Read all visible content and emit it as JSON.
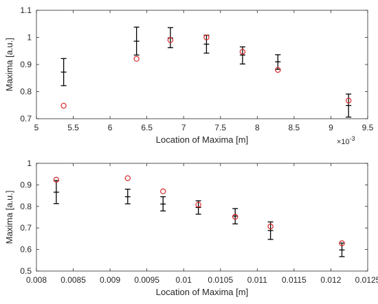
{
  "chart_data": [
    {
      "type": "scatter",
      "xlabel": "Location of Maxima [m]",
      "ylabel": "Maxima [a.u.]",
      "x_exponent_label": "×10",
      "x_exponent_power": "-3",
      "xlim": [
        5,
        9.5
      ],
      "ylim": [
        0.7,
        1.1
      ],
      "xticks": [
        5,
        5.5,
        6,
        6.5,
        7,
        7.5,
        8,
        8.5,
        9,
        9.5
      ],
      "xtick_labels": [
        "5",
        "5.5",
        "6",
        "6.5",
        "7",
        "7.5",
        "8",
        "8.5",
        "9",
        "9.5"
      ],
      "yticks": [
        0.7,
        0.8,
        0.9,
        1.0,
        1.1
      ],
      "ytick_labels": [
        "0.7",
        "0.8",
        "0.9",
        "1",
        "1.1"
      ],
      "grid": false,
      "colors": {
        "errorbar": "#000000",
        "marker": "#d62728"
      },
      "series": [
        {
          "style": "errorbar",
          "points": [
            {
              "x": 5.37,
              "y": 0.872,
              "low": 0.822,
              "high": 0.922
            },
            {
              "x": 6.36,
              "y": 0.986,
              "low": 0.935,
              "high": 1.038
            },
            {
              "x": 6.82,
              "y": 0.998,
              "low": 0.962,
              "high": 1.036
            },
            {
              "x": 7.31,
              "y": 0.975,
              "low": 0.942,
              "high": 1.008
            },
            {
              "x": 7.8,
              "y": 0.935,
              "low": 0.902,
              "high": 0.965
            },
            {
              "x": 8.28,
              "y": 0.91,
              "low": 0.882,
              "high": 0.936
            },
            {
              "x": 9.24,
              "y": 0.749,
              "low": 0.706,
              "high": 0.791
            }
          ]
        },
        {
          "style": "circle",
          "points": [
            {
              "x": 5.37,
              "y": 0.748
            },
            {
              "x": 6.36,
              "y": 0.921
            },
            {
              "x": 6.82,
              "y": 0.99
            },
            {
              "x": 7.31,
              "y": 1.0
            },
            {
              "x": 7.8,
              "y": 0.947
            },
            {
              "x": 8.28,
              "y": 0.88
            },
            {
              "x": 9.24,
              "y": 0.767
            }
          ]
        }
      ]
    },
    {
      "type": "scatter",
      "xlabel": "Location of Maxima [m]",
      "ylabel": "Maxima [a.u.]",
      "xlim": [
        0.008,
        0.0125
      ],
      "ylim": [
        0.5,
        1.0
      ],
      "xticks": [
        0.008,
        0.0085,
        0.009,
        0.0095,
        0.01,
        0.0105,
        0.011,
        0.0115,
        0.012,
        0.0125
      ],
      "xtick_labels": [
        "0.008",
        "0.0085",
        "0.009",
        "0.0095",
        "0.01",
        "0.0105",
        "0.011",
        "0.0115",
        "0.012",
        "0.0125"
      ],
      "yticks": [
        0.5,
        0.6,
        0.7,
        0.8,
        0.9,
        1.0
      ],
      "ytick_labels": [
        "0.5",
        "0.6",
        "0.7",
        "0.8",
        "0.9",
        "1"
      ],
      "grid": false,
      "colors": {
        "errorbar": "#000000",
        "marker": "#d62728"
      },
      "series": [
        {
          "style": "errorbar",
          "points": [
            {
              "x": 0.00827,
              "y": 0.866,
              "low": 0.813,
              "high": 0.92
            },
            {
              "x": 0.00924,
              "y": 0.845,
              "low": 0.812,
              "high": 0.88
            },
            {
              "x": 0.00972,
              "y": 0.811,
              "low": 0.779,
              "high": 0.845
            },
            {
              "x": 0.0102,
              "y": 0.795,
              "low": 0.764,
              "high": 0.826
            },
            {
              "x": 0.0107,
              "y": 0.755,
              "low": 0.719,
              "high": 0.79
            },
            {
              "x": 0.01118,
              "y": 0.688,
              "low": 0.647,
              "high": 0.728
            },
            {
              "x": 0.01215,
              "y": 0.598,
              "low": 0.567,
              "high": 0.63
            }
          ]
        },
        {
          "style": "circle",
          "points": [
            {
              "x": 0.00827,
              "y": 0.924
            },
            {
              "x": 0.00924,
              "y": 0.931
            },
            {
              "x": 0.00972,
              "y": 0.87
            },
            {
              "x": 0.0102,
              "y": 0.808
            },
            {
              "x": 0.0107,
              "y": 0.752
            },
            {
              "x": 0.01118,
              "y": 0.707
            },
            {
              "x": 0.01215,
              "y": 0.629
            }
          ]
        }
      ]
    }
  ]
}
